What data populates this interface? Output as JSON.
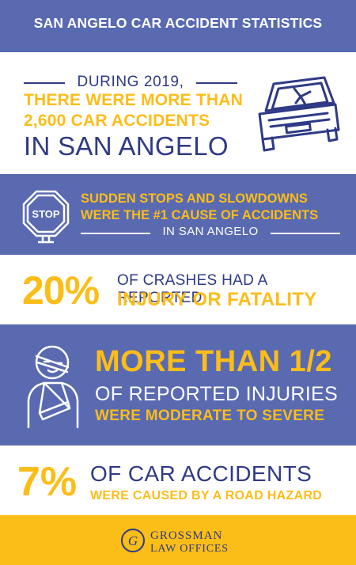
{
  "header": {
    "title": "SAN ANGELO CAR ACCIDENT STATISTICS"
  },
  "stat1": {
    "line1": "DURING 2019,",
    "line2": "THERE WERE MORE THAN",
    "line3": "2,600 CAR ACCIDENTS",
    "line4": "IN SAN ANGELO",
    "icon": "crashed-car-icon"
  },
  "stat2": {
    "line1": "SUDDEN STOPS AND SLOWDOWNS",
    "line2": "WERE THE #1 CAUSE OF ACCIDENTS",
    "line3": "IN SAN ANGELO",
    "icon": "stop-sign-icon",
    "sign_text": "STOP"
  },
  "stat3": {
    "percent": "20%",
    "line1": "OF CRASHES HAD A REPORTED",
    "line2": "INJURY OR FATALITY"
  },
  "stat4": {
    "line1": "MORE THAN 1/2",
    "line2": "OF REPORTED INJURIES",
    "line3": "WERE MODERATE TO SEVERE",
    "icon": "injured-person-icon"
  },
  "stat5": {
    "percent": "7%",
    "line1": "OF CAR ACCIDENTS",
    "line2": "WERE CAUSED BY A ROAD HAZARD"
  },
  "footer": {
    "logo_line1": "GROSSMAN",
    "logo_line2": "LAW OFFICES",
    "logo_mark": "G"
  },
  "colors": {
    "blue_band": "#5a6ab1",
    "navy_text": "#2e3a86",
    "gold": "#fbbd18",
    "white": "#ffffff"
  }
}
